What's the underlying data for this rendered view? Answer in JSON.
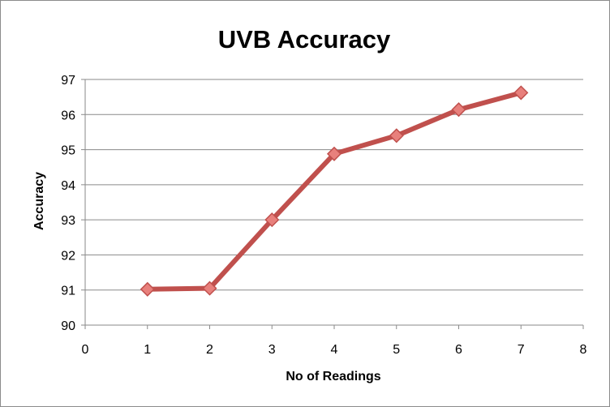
{
  "chart_data": {
    "type": "line",
    "title": "UVB Accuracy",
    "xlabel": "No of Readings",
    "ylabel": "Accuracy",
    "xlim": [
      0,
      8
    ],
    "ylim": [
      90,
      97
    ],
    "x_ticks": [
      "0",
      "1",
      "2",
      "3",
      "4",
      "5",
      "6",
      "7",
      "8"
    ],
    "y_ticks": [
      "90",
      "91",
      "92",
      "93",
      "94",
      "95",
      "96",
      "97"
    ],
    "grid": "horizontal",
    "legend": "none",
    "marker": "diamond",
    "series": [
      {
        "x": [
          1,
          2,
          3,
          4,
          5,
          6,
          7
        ],
        "values": [
          91.02,
          91.05,
          93.0,
          94.88,
          95.4,
          96.14,
          96.62
        ],
        "color": "#c0504d",
        "marker_fill": "#e8807c"
      }
    ],
    "colors": {
      "gridline": "#8a8a8a",
      "axis": "#8a8a8a",
      "frame": "#8c8c8c"
    }
  }
}
